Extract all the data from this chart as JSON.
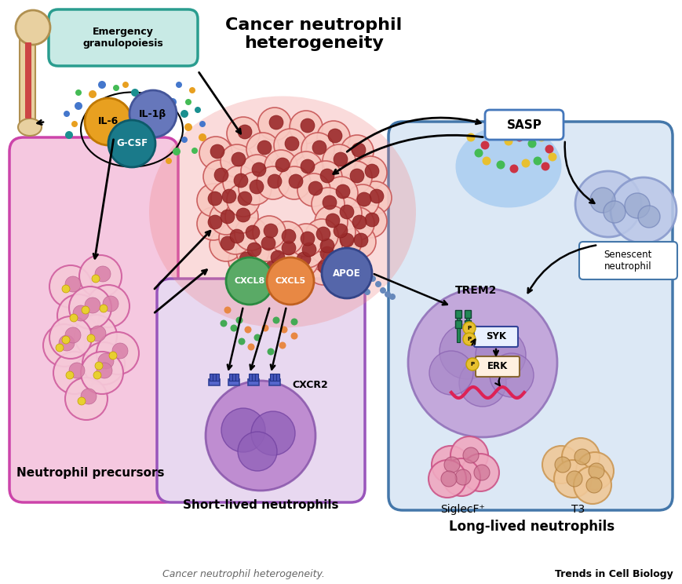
{
  "title": "Cancer neutrophil\nheterogeneity",
  "title_fontsize": 16,
  "title_weight": "bold",
  "background_color": "#ffffff",
  "caption": "Cancer neutrophil heterogeneity.",
  "caption_right": "Trends in Cell Biology",
  "emergency_box_fc": "#c8eae5",
  "emergency_box_ec": "#2a9d8f",
  "emergency_box_text": "Emergency\ngranulopoiesis",
  "precursor_box_fc": "#f5c8e0",
  "precursor_box_ec": "#cc44aa",
  "precursor_label": "Neutrophil precursors",
  "short_lived_box_fc": "#e8d8f0",
  "short_lived_box_ec": "#9955bb",
  "short_lived_label": "Short-lived neutrophils",
  "long_lived_box_fc": "#dce8f5",
  "long_lived_box_ec": "#4477aa",
  "long_lived_label": "Long-lived neutrophils",
  "il6_color": "#e8a020",
  "il1b_color": "#6677bb",
  "gcsf_color": "#1a7a8a",
  "cxcl8_color": "#5aaa66",
  "cxcl5_color": "#e88844",
  "apoe_color": "#5566aa",
  "sasp_box_fc": "#ffffff",
  "sasp_box_ec": "#4477bb"
}
